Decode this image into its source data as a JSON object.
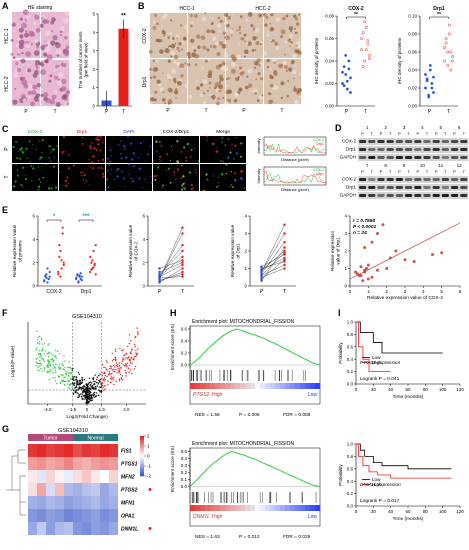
{
  "A": {
    "label": "A",
    "title": "HE staning",
    "rows": [
      "HCC-1",
      "HCC-2"
    ],
    "cols": [
      "P",
      "T"
    ],
    "bar": {
      "categories": [
        "P",
        "T"
      ],
      "values": [
        0.3,
        4.2
      ],
      "errors": [
        0.5,
        0.5
      ],
      "colors": [
        "#2f55d4",
        "#e8201c"
      ],
      "ylim": [
        0,
        5
      ],
      "yticks": [
        0,
        1,
        2,
        3,
        4,
        5
      ],
      "ylabel": [
        "The number of cancer nests",
        "(per field of view)"
      ],
      "sig": "**"
    }
  },
  "B": {
    "label": "B",
    "cols": [
      "HCC-1",
      "HCC-2"
    ],
    "rows": [
      "COX-2",
      "Drp1"
    ],
    "subcols": [
      "P",
      "T"
    ],
    "plots": [
      {
        "title": "COX-2",
        "categories": [
          "P",
          "T"
        ],
        "colors": [
          "#2f55d4",
          "#e8201c"
        ],
        "groups": [
          [
            0.02,
            0.035,
            0.028,
            0.015,
            0.04,
            0.025,
            0.03,
            0.018,
            0.045,
            0.022,
            0.033,
            0.012
          ],
          [
            0.05,
            0.065,
            0.04,
            0.07,
            0.055,
            0.045,
            0.06,
            0.035,
            0.075,
            0.05,
            0.058,
            0.042
          ]
        ],
        "ylim": [
          0,
          0.08
        ],
        "yticks": [
          {
            "value": 0,
            "label": "0.00"
          },
          0.02,
          0.04,
          0.06,
          0.08
        ],
        "ylabel": "IHC density of proteins",
        "sig": "**"
      },
      {
        "title": "Drp1",
        "categories": [
          "P",
          "T"
        ],
        "colors": [
          "#2f55d4",
          "#e8201c"
        ],
        "groups": [
          [
            0.02,
            0.03,
            0.01,
            0.04,
            0.025,
            0.015,
            0.035,
            0.028,
            0.012,
            0.045,
            0.02,
            0.032
          ],
          [
            0.05,
            0.07,
            0.06,
            0.08,
            0.04,
            0.055,
            0.065,
            0.075,
            0.045,
            0.09,
            0.06,
            0.05
          ]
        ],
        "ylim": [
          0,
          0.1
        ],
        "yticks": [
          {
            "value": 0,
            "label": "0.00"
          },
          0.02,
          0.04,
          0.06,
          0.08,
          {
            "value": 0.1,
            "label": "0.10"
          }
        ],
        "ylabel": "IHC density of proteins",
        "sig": "**"
      }
    ]
  },
  "C": {
    "label": "C",
    "cols": [
      "COX-2",
      "Drp1",
      "DAPI",
      "COX-2/Drp1",
      "Merge"
    ],
    "rows": [
      "P",
      "T"
    ],
    "profile": {
      "ylabel": "Intensity",
      "xlabel": "Distance (pixel)",
      "legend": [
        "COX-2",
        "Drp1"
      ]
    }
  },
  "D": {
    "label": "D",
    "lanes_top": [
      "1",
      "2",
      "3",
      "4",
      "5",
      "6"
    ],
    "lanes_bottom": [
      "7",
      "8",
      "9",
      "10",
      "11",
      "12"
    ],
    "pt": [
      "P",
      "T"
    ],
    "rows": [
      "COX-2",
      "Drp1",
      "GAPDH"
    ]
  },
  "E": {
    "label": "E",
    "plots": [
      {
        "categories": [
          "COX-2",
          "Drp1"
        ],
        "groups": [
          {
            "color": "#2f55d4",
            "values": [
              [
                0.5,
                0.8,
                1.0,
                0.3,
                0.6,
                1.2,
                0.4,
                0.9,
                0.7,
                1.5,
                0.6,
                0.8
              ],
              [
                0.6,
                0.9,
                0.4,
                0.8,
                1.1,
                0.5,
                0.7,
                1.0,
                0.3,
                0.9,
                0.6,
                0.8
              ]
            ]
          },
          {
            "color": "#e8201c",
            "values": [
              [
                1.0,
                2.5,
                3.0,
                1.5,
                4.5,
                2.0,
                1.2,
                3.5,
                0.8,
                2.2,
                5.0,
                1.8
              ],
              [
                1.2,
                2.0,
                1.5,
                3.0,
                1.8,
                1.0,
                2.5,
                1.4,
                2.2,
                1.6,
                1.9,
                3.5
              ]
            ]
          }
        ],
        "ylim": [
          0,
          6
        ],
        "yticks": [
          0,
          2,
          4,
          6
        ],
        "ylabel": [
          "Relative expression value",
          "of proteins"
        ],
        "sig": [
          "*",
          "***"
        ]
      },
      {
        "categories": [
          "P",
          "T"
        ],
        "P": [
          0.5,
          0.8,
          1.0,
          0.3,
          0.6,
          1.2,
          0.4,
          0.9,
          0.7,
          1.5,
          0.6,
          0.8
        ],
        "T": [
          1.0,
          2.5,
          3.0,
          1.5,
          4.5,
          2.0,
          1.2,
          3.5,
          0.8,
          2.2,
          5.0,
          1.8
        ],
        "colors": [
          "#2f55d4",
          "#e8201c"
        ],
        "ylim": [
          0,
          6
        ],
        "yticks": [
          0,
          2,
          4,
          6
        ],
        "ylabel": [
          "Relative expression value",
          "of COX-2"
        ]
      },
      {
        "categories": [
          "P",
          "T"
        ],
        "P": [
          0.6,
          0.9,
          0.4,
          0.8,
          1.1,
          0.5,
          0.7,
          1.0,
          0.3,
          0.9,
          0.6,
          0.8
        ],
        "T": [
          1.2,
          2.0,
          1.5,
          3.0,
          1.8,
          1.0,
          2.5,
          1.4,
          2.2,
          1.6,
          1.9,
          3.5
        ],
        "colors": [
          "#2f55d4",
          "#e8201c"
        ],
        "ylim": [
          0,
          4
        ],
        "yticks": [
          0,
          1,
          2,
          3,
          4
        ],
        "ylabel": [
          "Relative expression value",
          "of Drp1"
        ]
      },
      {
        "x": [
          0.5,
          0.8,
          1.0,
          0.3,
          0.6,
          1.2,
          0.4,
          0.9,
          0.7,
          1.5,
          0.6,
          0.8,
          1.0,
          2.5,
          3.0,
          1.5,
          4.5,
          2.0,
          1.2,
          3.5,
          0.8,
          2.2,
          5.0,
          1.8
        ],
        "y": [
          0.6,
          0.9,
          0.4,
          0.8,
          1.1,
          0.5,
          0.7,
          1.0,
          0.3,
          0.9,
          0.6,
          0.8,
          1.2,
          2.0,
          1.5,
          3.0,
          1.8,
          1.0,
          2.5,
          1.4,
          2.2,
          1.6,
          1.9,
          3.5
        ],
        "color": "#c0392b",
        "xlim": [
          0,
          6
        ],
        "xticks": [
          0,
          1,
          2,
          3,
          4,
          5,
          6
        ],
        "ylim": [
          0,
          4
        ],
        "yticks": [
          0,
          1,
          2,
          3,
          4
        ],
        "xlabel": "Relative expression value of COX-2",
        "ylabel": [
          "Relative expression",
          "value of Drp1"
        ],
        "stats": [
          "r = 0.7558",
          "P < 0.0001",
          "n = 24"
        ],
        "fit": {
          "x": [
            0,
            6
          ],
          "y": [
            0.4,
            3.6
          ]
        }
      }
    ]
  },
  "F": {
    "label": "F",
    "title": "GSE104310",
    "xlabel": "Log2(Fold Change)",
    "ylabel": "- Log10(P-value)",
    "xlim": [
      -6,
      6
    ],
    "xticks": [
      {
        "value": -4,
        "label": "-4.0"
      },
      -1.5,
      0,
      1.5,
      {
        "value": 4,
        "label": "4.0"
      }
    ],
    "annotation": "PTGS2"
  },
  "G": {
    "label": "G",
    "title": "GSE104310",
    "groups": [
      "Tumor",
      "Normal"
    ],
    "genes": [
      "FIS1",
      "PTGS1",
      "MFN2",
      "PTGS2",
      "MFN1",
      "OPA1",
      "DNM1L"
    ],
    "values": [
      [
        1.8,
        1.9,
        1.7,
        1.8,
        1.9,
        1.6,
        1.8,
        1.7,
        1.9,
        1.8
      ],
      [
        0.9,
        1.0,
        0.8,
        0.9,
        1.1,
        0.8,
        0.7,
        0.9,
        1.0,
        0.9
      ],
      [
        0.2,
        -0.3,
        0.4,
        0.1,
        -0.2,
        0.3,
        0.5,
        0.2,
        0.0,
        0.4
      ],
      [
        0.3,
        0.8,
        -0.4,
        0.6,
        -0.8,
        -0.9,
        -0.7,
        -0.6,
        -1.0,
        -0.8
      ],
      [
        -0.9,
        -1.0,
        -0.8,
        -0.9,
        -1.1,
        -1.0,
        -0.9,
        -0.8,
        -1.0,
        -0.9
      ],
      [
        -1.2,
        -1.3,
        -1.1,
        -1.2,
        -1.4,
        -1.3,
        -1.2,
        -1.1,
        -1.3,
        -1.2
      ],
      [
        -1.0,
        -0.6,
        -1.1,
        -0.8,
        -0.7,
        -1.2,
        -1.3,
        -1.1,
        -1.2,
        -1.0
      ]
    ],
    "scale_lim": [
      -2,
      2
    ],
    "scale_ticks": [
      2,
      1,
      0,
      -1,
      -2
    ]
  },
  "H": {
    "label": "H",
    "plots": [
      {
        "title": "Enrichment plot: MITOCHONDRIAL_FISSION",
        "ylabel": "Enrichment score (ES)",
        "ylim": [
          -0.05,
          0.65
        ],
        "yticks": [
          {
            "value": 0,
            "label": "0.0"
          },
          0.2,
          0.4,
          0.6
        ],
        "es": [
          0,
          0.05,
          0.12,
          0.2,
          0.28,
          0.35,
          0.42,
          0.48,
          0.53,
          0.57,
          0.6,
          0.58,
          0.55,
          0.52,
          0.5,
          0.47,
          0.44,
          0.4,
          0.37,
          0.33,
          0.29,
          0.25,
          0.21,
          0.17,
          0.13,
          0.09,
          0.05,
          0.02,
          0
        ],
        "gene": "PTGS2",
        "high": "High",
        "low": "Low",
        "stats": [
          "NES = 1.58",
          "P = 0.008",
          "FDR = 0.008"
        ]
      },
      {
        "title": "Enrichment plot: MITOCHONDRIAL_FISSION",
        "ylabel": "Enrichment score (ES)",
        "ylim": [
          -0.05,
          0.55
        ],
        "yticks": [
          {
            "value": 0,
            "label": "0.0"
          },
          0.1,
          0.2,
          0.3,
          0.4,
          0.5
        ],
        "es": [
          0,
          0.06,
          0.13,
          0.2,
          0.27,
          0.33,
          0.38,
          0.43,
          0.47,
          0.5,
          0.48,
          0.46,
          0.44,
          0.41,
          0.39,
          0.36,
          0.33,
          0.3,
          0.27,
          0.24,
          0.21,
          0.18,
          0.15,
          0.12,
          0.09,
          0.06,
          0.03,
          0.01,
          0
        ],
        "gene": "DNM1L",
        "high": "High",
        "low": "Low",
        "stats": [
          "NES = 1.63",
          "P = 0.012",
          "FDR = 0.025"
        ]
      }
    ]
  },
  "I": {
    "label": "I",
    "plots": [
      {
        "legend_title": "PTGS2 expression",
        "series": [
          {
            "name": "Low",
            "color": "#000000",
            "x": [
              0,
              5,
              20,
              30,
              100
            ],
            "y": [
              1,
              0.83,
              0.67,
              0.5,
              0.5
            ]
          },
          {
            "name": "High",
            "color": "#e8201c",
            "x": [
              0,
              3,
              8,
              15,
              40
            ],
            "y": [
              1,
              0.6,
              0.4,
              0.2,
              0.2
            ]
          }
        ],
        "stat": "Logrank P = 0.041",
        "xlim": [
          0,
          120
        ],
        "xticks": [
          0,
          20,
          40,
          60,
          80,
          100,
          120
        ],
        "ylim": [
          0,
          1
        ],
        "yticks": [
          {
            "value": 0,
            "label": "0.0"
          },
          0.2,
          0.4,
          0.6,
          0.8,
          {
            "value": 1,
            "label": "1.0"
          }
        ],
        "xlabel": "Time (months)",
        "ylabel": "Probability"
      },
      {
        "legend_title": "DNM1L expression",
        "series": [
          {
            "name": "Low",
            "color": "#000000",
            "x": [
              0,
              5,
              10,
              20,
              30,
              60,
              110
            ],
            "y": [
              1,
              0.9,
              0.8,
              0.7,
              0.65,
              0.6,
              0.6
            ]
          },
          {
            "name": "High",
            "color": "#e8201c",
            "x": [
              0,
              3,
              8,
              15,
              25,
              40,
              110
            ],
            "y": [
              1,
              0.8,
              0.65,
              0.55,
              0.5,
              0.45,
              0.45
            ]
          }
        ],
        "stat": "Logrank P = 0.017",
        "xlim": [
          0,
          120
        ],
        "xticks": [
          0,
          20,
          40,
          60,
          80,
          100,
          120
        ],
        "ylim": [
          0,
          1
        ],
        "yticks": [
          {
            "value": 0,
            "label": "0.0"
          },
          0.2,
          0.4,
          0.6,
          0.8,
          {
            "value": 1,
            "label": "1.0"
          }
        ],
        "xlabel": "Time (months)",
        "ylabel": "Probability"
      }
    ]
  }
}
